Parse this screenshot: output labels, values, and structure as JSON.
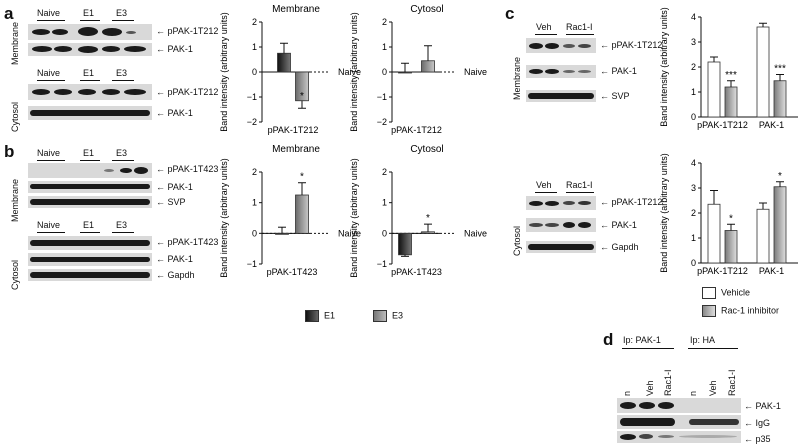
{
  "panels": {
    "a": {
      "label": "a",
      "membrane": {
        "side": "Membrane",
        "lanes": [
          "Naive",
          "E1",
          "E3"
        ],
        "bands": [
          "pPAK-1T212",
          "PAK-1"
        ]
      },
      "cytosol": {
        "side": "Cytosol",
        "lanes": [
          "Naive",
          "E1",
          "E3"
        ],
        "bands": [
          "pPAK-1T212",
          "PAK-1"
        ]
      }
    },
    "b": {
      "label": "b",
      "membrane": {
        "side": "Membrane",
        "lanes": [
          "Naive",
          "E1",
          "E3"
        ],
        "bands": [
          "pPAK-1T423",
          "PAK-1",
          "SVP"
        ]
      },
      "cytosol": {
        "side": "Cytosol",
        "lanes": [
          "Naive",
          "E1",
          "E3"
        ],
        "bands": [
          "pPAK-1T423",
          "PAK-1",
          "Gapdh"
        ]
      }
    },
    "c": {
      "label": "c",
      "membrane": {
        "side": "Membrane",
        "lanes": [
          "Veh",
          "Rac1-I"
        ],
        "bands": [
          "pPAK-1T212",
          "PAK-1",
          "SVP"
        ]
      },
      "cytosol": {
        "side": "Cytosol",
        "lanes": [
          "Veh",
          "Rac1-I"
        ],
        "bands": [
          "pPAK-1T212",
          "PAK-1",
          "Gapdh"
        ]
      }
    },
    "d": {
      "label": "d",
      "groups": [
        "Ip: PAK-1",
        "Ip: HA"
      ],
      "lanes": [
        "n",
        "Veh",
        "Rac1-I",
        "n",
        "Veh",
        "Rac1-I"
      ],
      "bands": [
        "PAK-1",
        "IgG",
        "p35"
      ]
    }
  },
  "legend_e": {
    "e1": "E1",
    "e3": "E3",
    "e1_color": "#3a3a3a",
    "e3_color": "#9a9a9a"
  },
  "legend_c": {
    "vehicle": "Vehicle",
    "rac": "Rac-1 inhibitor",
    "vehicle_color": "#ffffff",
    "rac_color": "#a8a8a8"
  },
  "chart_data": [
    {
      "type": "bar",
      "title": "Membrane",
      "panel": "a",
      "categories": [
        "pPAK-1T212"
      ],
      "series": [
        {
          "name": "E1",
          "values": [
            0.75
          ]
        },
        {
          "name": "E3",
          "values": [
            -1.15
          ]
        }
      ],
      "errors": [
        [
          0.4
        ],
        [
          0.3
        ]
      ],
      "ylim": [
        -2,
        2
      ],
      "yticks": [
        -2,
        -1,
        0,
        1,
        2
      ],
      "ylabel": "Band intensity (arbitrary units)",
      "reference": "Naive",
      "significance": [
        "",
        "*"
      ]
    },
    {
      "type": "bar",
      "title": "Cytosol",
      "panel": "a",
      "categories": [
        "pPAK-1T212"
      ],
      "series": [
        {
          "name": "E1",
          "values": [
            0.0
          ]
        },
        {
          "name": "E3",
          "values": [
            0.45
          ]
        }
      ],
      "errors": [
        [
          0.35
        ],
        [
          0.6
        ]
      ],
      "ylim": [
        -2,
        2
      ],
      "yticks": [
        -2,
        -1,
        0,
        1,
        2
      ],
      "ylabel": "Band intensity (arbitrary units)",
      "reference": "Naive",
      "significance": [
        "",
        ""
      ]
    },
    {
      "type": "bar",
      "title": "Membrane",
      "panel": "b",
      "categories": [
        "pPAK-1T423"
      ],
      "series": [
        {
          "name": "E1",
          "values": [
            0.0
          ]
        },
        {
          "name": "E3",
          "values": [
            1.25
          ]
        }
      ],
      "errors": [
        [
          0.2
        ],
        [
          0.4
        ]
      ],
      "ylim": [
        -1,
        2
      ],
      "yticks": [
        -1,
        0,
        1,
        2
      ],
      "ylabel": "Band intensity (arbitrary units)",
      "reference": "Naive",
      "significance": [
        "",
        "*"
      ]
    },
    {
      "type": "bar",
      "title": "Cytosol",
      "panel": "b",
      "categories": [
        "pPAK-1T423"
      ],
      "series": [
        {
          "name": "E1",
          "values": [
            -0.7
          ]
        },
        {
          "name": "E3",
          "values": [
            0.05
          ]
        }
      ],
      "errors": [
        [
          0.05
        ],
        [
          0.25
        ]
      ],
      "ylim": [
        -1,
        2
      ],
      "yticks": [
        -1,
        0,
        1,
        2
      ],
      "ylabel": "Band intensity (arbitrary units)",
      "reference": "Naive",
      "significance": [
        "",
        "*"
      ]
    },
    {
      "type": "bar",
      "title": "",
      "panel": "c-membrane",
      "categories": [
        "pPAK-1T212",
        "PAK-1"
      ],
      "series": [
        {
          "name": "Vehicle",
          "values": [
            2.2,
            3.6
          ]
        },
        {
          "name": "Rac-1 inhibitor",
          "values": [
            1.2,
            1.45
          ]
        }
      ],
      "errors": [
        [
          0.2,
          0.15
        ],
        [
          0.25,
          0.25
        ]
      ],
      "ylim": [
        0,
        4
      ],
      "yticks": [
        0,
        1,
        2,
        3,
        4
      ],
      "ylabel": "Band intensity (arbitrary units)",
      "significance": [
        "",
        "***",
        "",
        "***"
      ]
    },
    {
      "type": "bar",
      "title": "",
      "panel": "c-cytosol",
      "categories": [
        "pPAK-1T212",
        "PAK-1"
      ],
      "series": [
        {
          "name": "Vehicle",
          "values": [
            2.35,
            2.15
          ]
        },
        {
          "name": "Rac-1 inhibitor",
          "values": [
            1.3,
            3.05
          ]
        }
      ],
      "errors": [
        [
          0.55,
          0.25
        ],
        [
          0.25,
          0.2
        ]
      ],
      "ylim": [
        0,
        4
      ],
      "yticks": [
        0,
        1,
        2,
        3,
        4
      ],
      "ylabel": "Band intensity (arbitrary units)",
      "significance": [
        "",
        "*",
        "",
        "*"
      ]
    }
  ]
}
